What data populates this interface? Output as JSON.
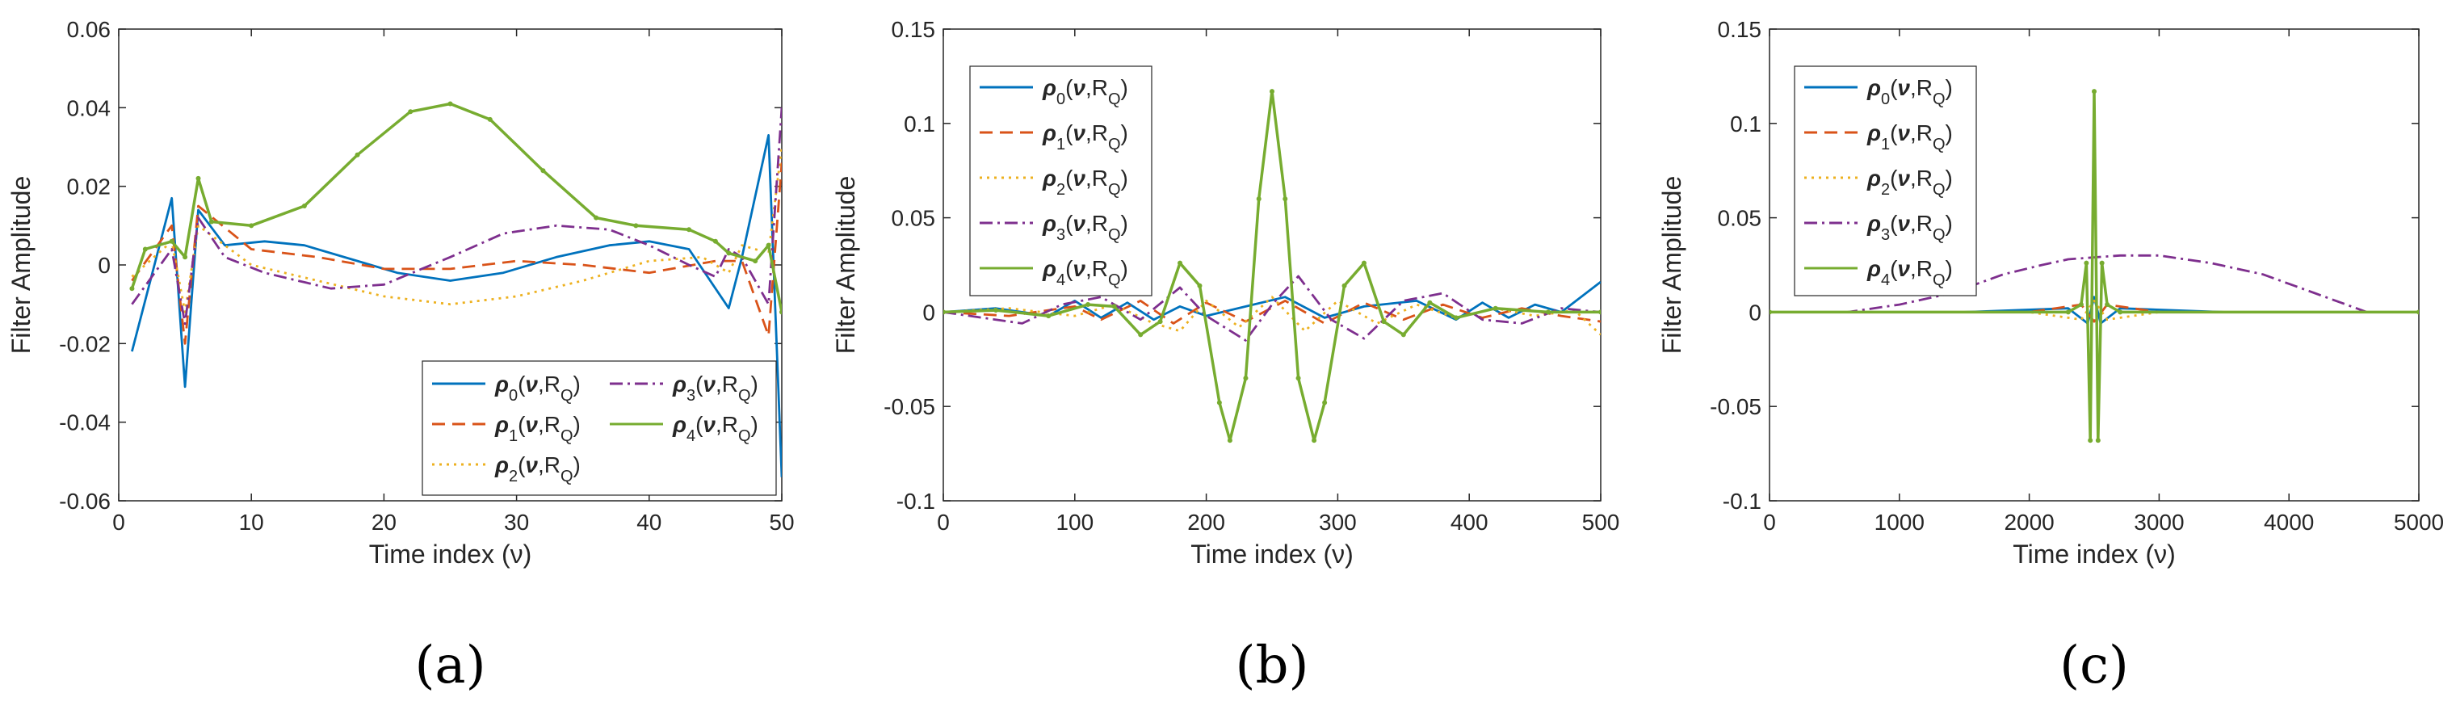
{
  "chart_data": [
    {
      "type": "line",
      "panel_label": "(a)",
      "xlabel": "Time index (ν)",
      "ylabel": "Filter Amplitude",
      "xlim": [
        0,
        50
      ],
      "ylim": [
        -0.06,
        0.06
      ],
      "xticks": [
        0,
        10,
        20,
        30,
        40,
        50
      ],
      "xtick_labels": [
        "0",
        "10",
        "20",
        "30",
        "40",
        "50"
      ],
      "yticks": [
        -0.06,
        -0.04,
        -0.02,
        0,
        0.02,
        0.04,
        0.06
      ],
      "ytick_labels": [
        "-0.06",
        "-0.04",
        "-0.02",
        "0",
        "0.02",
        "0.04",
        "0.06"
      ],
      "legend_position": "bottom-right",
      "legend_columns": 2,
      "series": [
        {
          "name": "ρ0(ν,RQ)",
          "color": "#0072BD",
          "dash": "solid",
          "x": [
            1,
            4,
            5,
            6,
            8,
            11,
            14,
            18,
            21,
            25,
            29,
            33,
            37,
            40,
            43,
            46,
            47,
            49,
            50
          ],
          "values": [
            -0.022,
            0.017,
            -0.031,
            0.014,
            0.005,
            0.006,
            0.005,
            0.001,
            -0.002,
            -0.004,
            -0.002,
            0.002,
            0.005,
            0.006,
            0.004,
            -0.011,
            0.002,
            0.033,
            -0.054
          ]
        },
        {
          "name": "ρ1(ν,RQ)",
          "color": "#D95319",
          "dash": "dashed",
          "x": [
            1,
            4,
            5,
            6,
            10,
            15,
            20,
            25,
            30,
            35,
            40,
            45,
            47,
            49,
            50
          ],
          "values": [
            -0.004,
            0.01,
            -0.02,
            0.015,
            0.004,
            0.002,
            -0.001,
            -0.001,
            0.001,
            0.0,
            -0.002,
            0.001,
            0.001,
            -0.018,
            0.026
          ]
        },
        {
          "name": "ρ2(ν,RQ)",
          "color": "#EDB120",
          "dash": "dotted",
          "x": [
            1,
            4,
            5,
            6,
            10,
            15,
            20,
            25,
            30,
            35,
            40,
            44,
            46,
            47,
            49,
            50
          ],
          "values": [
            -0.003,
            0.006,
            -0.012,
            0.01,
            0.0,
            -0.004,
            -0.008,
            -0.01,
            -0.008,
            -0.004,
            0.001,
            0.002,
            -0.002,
            0.005,
            0.003,
            0.03
          ]
        },
        {
          "name": "ρ3(ν,RQ)",
          "color": "#7E2F8E",
          "dash": "dashdot",
          "x": [
            1,
            4,
            5,
            6,
            8,
            11,
            16,
            20,
            25,
            29,
            33,
            37,
            40,
            43,
            45,
            46,
            47,
            49,
            50
          ],
          "values": [
            -0.01,
            0.004,
            -0.015,
            0.012,
            0.002,
            -0.002,
            -0.006,
            -0.005,
            0.002,
            0.008,
            0.01,
            0.009,
            0.005,
            0.0,
            -0.003,
            0.004,
            0.002,
            -0.01,
            0.04
          ]
        },
        {
          "name": "ρ4(ν,RQ)",
          "color": "#77AC30",
          "dash": "solid-marker",
          "x": [
            1,
            2,
            4,
            5,
            6,
            7,
            10,
            14,
            18,
            22,
            25,
            28,
            32,
            36,
            39,
            43,
            45,
            46,
            48,
            49,
            50
          ],
          "values": [
            -0.006,
            0.004,
            0.006,
            0.002,
            0.022,
            0.011,
            0.01,
            0.015,
            0.028,
            0.039,
            0.041,
            0.037,
            0.024,
            0.012,
            0.01,
            0.009,
            0.006,
            0.003,
            0.001,
            0.005,
            -0.012
          ]
        }
      ]
    },
    {
      "type": "line",
      "panel_label": "(b)",
      "xlabel": "Time index (ν)",
      "ylabel": "Filter Amplitude",
      "xlim": [
        0,
        500
      ],
      "ylim": [
        -0.1,
        0.15
      ],
      "xticks": [
        0,
        100,
        200,
        300,
        400,
        500
      ],
      "xtick_labels": [
        "0",
        "100",
        "200",
        "300",
        "400",
        "500"
      ],
      "yticks": [
        -0.1,
        -0.05,
        0,
        0.05,
        0.1,
        0.15
      ],
      "ytick_labels": [
        "-0.1",
        "-0.05",
        "0",
        "0.05",
        "0.1",
        "0.15"
      ],
      "legend_position": "top-left",
      "legend_columns": 1,
      "series": [
        {
          "name": "ρ0(ν,RQ)",
          "color": "#0072BD",
          "dash": "solid",
          "x": [
            0,
            40,
            80,
            100,
            120,
            140,
            160,
            180,
            200,
            230,
            260,
            290,
            320,
            360,
            390,
            410,
            430,
            450,
            470,
            500
          ],
          "values": [
            0.0,
            0.002,
            -0.002,
            0.006,
            -0.003,
            0.005,
            -0.004,
            0.003,
            -0.002,
            0.003,
            0.008,
            -0.003,
            0.003,
            0.006,
            -0.004,
            0.005,
            -0.003,
            0.004,
            0.0,
            0.016
          ]
        },
        {
          "name": "ρ1(ν,RQ)",
          "color": "#D95319",
          "dash": "dashed",
          "x": [
            0,
            50,
            100,
            120,
            150,
            175,
            200,
            230,
            260,
            290,
            320,
            350,
            380,
            410,
            440,
            470,
            500
          ],
          "values": [
            0.0,
            -0.002,
            0.003,
            -0.004,
            0.006,
            -0.006,
            0.005,
            -0.005,
            0.006,
            -0.006,
            0.005,
            -0.004,
            0.004,
            -0.003,
            0.002,
            -0.002,
            -0.005
          ]
        },
        {
          "name": "ρ2(ν,RQ)",
          "color": "#EDB120",
          "dash": "dotted",
          "x": [
            0,
            50,
            100,
            130,
            160,
            180,
            200,
            225,
            250,
            275,
            300,
            330,
            360,
            390,
            420,
            450,
            480,
            500
          ],
          "values": [
            0.0,
            0.002,
            -0.002,
            0.004,
            -0.006,
            -0.01,
            0.006,
            -0.008,
            0.008,
            -0.01,
            0.006,
            -0.006,
            0.004,
            -0.003,
            0.002,
            -0.002,
            0.001,
            -0.012
          ]
        },
        {
          "name": "ρ3(ν,RQ)",
          "color": "#7E2F8E",
          "dash": "dashdot",
          "x": [
            0,
            30,
            60,
            90,
            120,
            150,
            180,
            200,
            230,
            250,
            270,
            295,
            320,
            350,
            380,
            410,
            440,
            470,
            500
          ],
          "values": [
            0.0,
            -0.003,
            -0.006,
            0.004,
            0.008,
            -0.004,
            0.013,
            -0.002,
            -0.015,
            0.004,
            0.019,
            -0.004,
            -0.014,
            0.006,
            0.01,
            -0.004,
            -0.006,
            0.002,
            0.0
          ]
        },
        {
          "name": "ρ4(ν,RQ)",
          "color": "#77AC30",
          "dash": "solid-marker",
          "x": [
            0,
            40,
            80,
            110,
            130,
            150,
            165,
            180,
            195,
            210,
            218,
            230,
            240,
            250,
            260,
            270,
            282,
            290,
            305,
            320,
            335,
            350,
            370,
            390,
            420,
            460,
            500
          ],
          "values": [
            0.0,
            0.001,
            -0.002,
            0.004,
            0.003,
            -0.012,
            -0.005,
            0.026,
            0.014,
            -0.048,
            -0.068,
            -0.035,
            0.06,
            0.117,
            0.06,
            -0.035,
            -0.068,
            -0.048,
            0.014,
            0.026,
            -0.005,
            -0.012,
            0.005,
            -0.003,
            0.002,
            0.0,
            0.0
          ]
        }
      ]
    },
    {
      "type": "line",
      "panel_label": "(c)",
      "xlabel": "Time index (ν)",
      "ylabel": "Filter Amplitude",
      "xlim": [
        0,
        5000
      ],
      "ylim": [
        -0.1,
        0.15
      ],
      "xticks": [
        0,
        1000,
        2000,
        3000,
        4000,
        5000
      ],
      "xtick_labels": [
        "0",
        "1000",
        "2000",
        "3000",
        "4000",
        "5000"
      ],
      "yticks": [
        -0.1,
        -0.05,
        0,
        0.05,
        0.1,
        0.15
      ],
      "ytick_labels": [
        "-0.1",
        "-0.05",
        "0",
        "0.05",
        "0.1",
        "0.15"
      ],
      "legend_position": "top-left",
      "legend_columns": 1,
      "series": [
        {
          "name": "ρ0(ν,RQ)",
          "color": "#0072BD",
          "dash": "solid",
          "x": [
            0,
            1500,
            2300,
            2450,
            2500,
            2550,
            2700,
            3500,
            5000
          ],
          "values": [
            0.0,
            0.0,
            0.002,
            -0.006,
            0.008,
            -0.006,
            0.002,
            0.0,
            0.0
          ]
        },
        {
          "name": "ρ1(ν,RQ)",
          "color": "#D95319",
          "dash": "dashed",
          "x": [
            0,
            2000,
            2400,
            2500,
            2600,
            3000,
            5000
          ],
          "values": [
            0.0,
            0.0,
            0.004,
            -0.005,
            0.004,
            0.0,
            0.0
          ]
        },
        {
          "name": "ρ2(ν,RQ)",
          "color": "#EDB120",
          "dash": "dotted",
          "x": [
            0,
            2000,
            2400,
            2500,
            2600,
            3000,
            5000
          ],
          "values": [
            0.0,
            0.0,
            -0.004,
            0.006,
            -0.004,
            0.0,
            0.0
          ]
        },
        {
          "name": "ρ3(ν,RQ)",
          "color": "#7E2F8E",
          "dash": "dashdot",
          "x": [
            0,
            600,
            1000,
            1400,
            1800,
            2100,
            2300,
            2700,
            3000,
            3400,
            3800,
            4200,
            4600,
            5000
          ],
          "values": [
            0.0,
            0.0,
            0.004,
            0.01,
            0.02,
            0.025,
            0.028,
            0.03,
            0.03,
            0.026,
            0.02,
            0.01,
            0.0,
            0.0
          ]
        },
        {
          "name": "ρ4(ν,RQ)",
          "color": "#77AC30",
          "dash": "solid-marker",
          "x": [
            0,
            2300,
            2400,
            2440,
            2470,
            2500,
            2530,
            2560,
            2600,
            2700,
            5000
          ],
          "values": [
            0.0,
            0.0,
            0.004,
            0.026,
            -0.068,
            0.117,
            -0.068,
            0.026,
            0.004,
            0.0,
            0.0
          ]
        }
      ]
    }
  ]
}
